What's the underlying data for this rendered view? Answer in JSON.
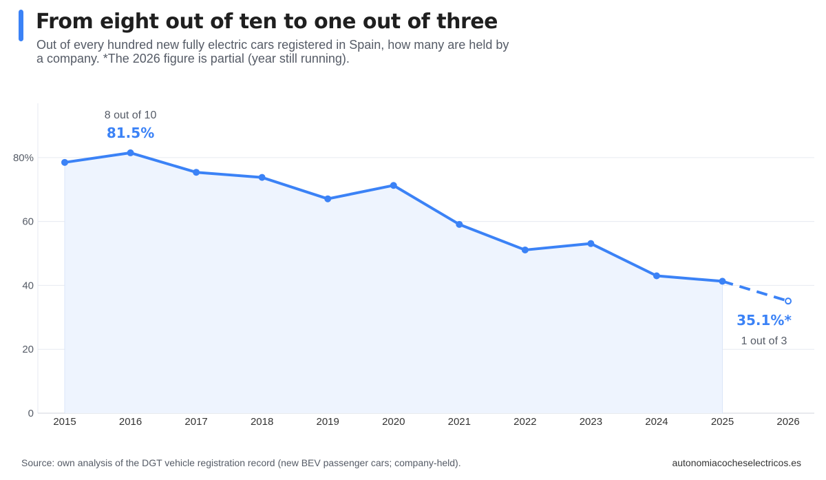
{
  "header": {
    "title": "From eight out of ten to one out of three",
    "subtitle": "Out of every hundred new fully electric cars registered in Spain, how many are held by a company. *The 2026 figure is partial (year still running)."
  },
  "footer": {
    "source": "Source: own analysis of the DGT vehicle registration record (new BEV passenger cars; company-held).",
    "site": "autonomiacocheselectricos.es"
  },
  "colors": {
    "accent": "#3b82f6",
    "area": "#eef4fe",
    "grid": "#e6eaf0",
    "text": "#555b66"
  },
  "chart_data": {
    "type": "line",
    "x": [
      "2015",
      "2016",
      "2017",
      "2018",
      "2019",
      "2020",
      "2021",
      "2022",
      "2023",
      "2024",
      "2025",
      "2026"
    ],
    "series": [
      {
        "values": [
          78.5,
          81.5,
          75.4,
          73.8,
          67.1,
          71.3,
          59.1,
          51.1,
          53.1,
          43.0,
          41.3,
          35.1
        ],
        "partial_from_index": 10
      }
    ],
    "yticks": [
      {
        "value": 0,
        "label": "0"
      },
      {
        "value": 20,
        "label": "20"
      },
      {
        "value": 40,
        "label": "40"
      },
      {
        "value": 60,
        "label": "60"
      },
      {
        "value": 80,
        "label": "80%"
      }
    ],
    "ylim": [
      0,
      97
    ],
    "grid": true,
    "annotations": {
      "peak": {
        "index": 1,
        "caption": "8 out of 10",
        "value_label": "81.5%"
      },
      "last": {
        "index": 11,
        "value_label": "35.1%*",
        "caption": "1 out of 3"
      }
    }
  }
}
